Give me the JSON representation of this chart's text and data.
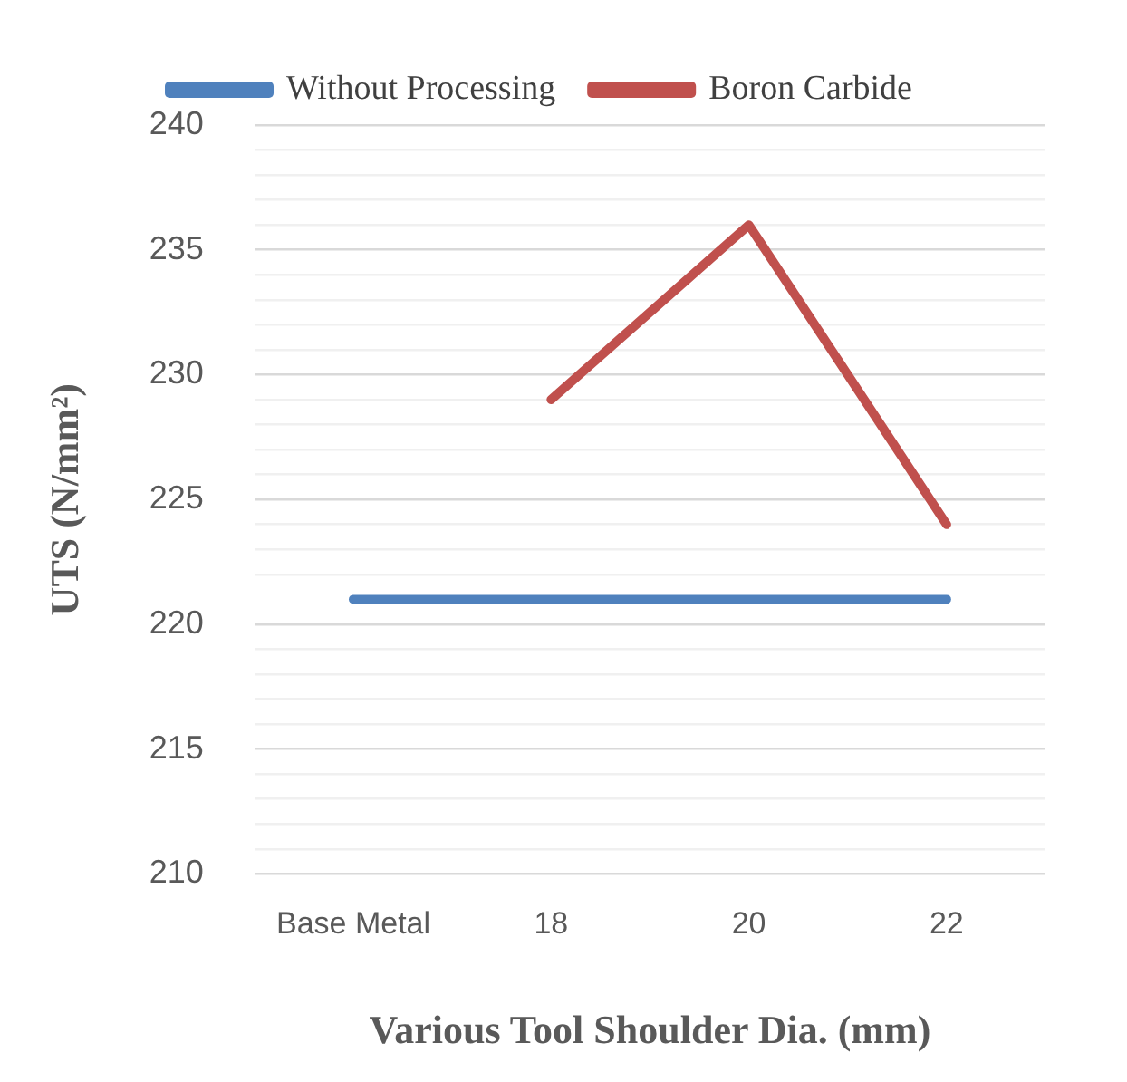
{
  "chart_data": {
    "type": "line",
    "xlabel": "Various Tool Shoulder Dia. (mm)",
    "ylabel": "UTS (N/mm²)",
    "categories": [
      "Base Metal",
      "18",
      "20",
      "22"
    ],
    "series": [
      {
        "name": "Without Processing",
        "color": "#4f81bd",
        "values": [
          221,
          221,
          221,
          221
        ]
      },
      {
        "name": "Boron Carbide",
        "color": "#c0504d",
        "values": [
          null,
          229,
          236,
          224
        ]
      }
    ],
    "ylim": [
      210,
      240
    ],
    "yticks": [
      210,
      {
        "value": 211,
        "label": null
      },
      {
        "value": 212,
        "label": null
      },
      {
        "value": 213,
        "label": null
      },
      {
        "value": 214,
        "label": null
      },
      215,
      {
        "value": 216,
        "label": null
      },
      {
        "value": 217,
        "label": null
      },
      {
        "value": 218,
        "label": null
      },
      {
        "value": 219,
        "label": null
      },
      220,
      {
        "value": 222,
        "label": null
      },
      {
        "value": 223,
        "label": null
      },
      {
        "value": 224,
        "label": null
      },
      225,
      {
        "value": 226,
        "label": null
      },
      {
        "value": 227,
        "label": null
      },
      {
        "value": 228,
        "label": null
      },
      {
        "value": 229,
        "label": null
      },
      230,
      {
        "value": 231,
        "label": null
      },
      {
        "value": 232,
        "label": null
      },
      {
        "value": 233,
        "label": null
      },
      {
        "value": 234,
        "label": null
      },
      235,
      {
        "value": 236,
        "label": null
      },
      {
        "value": 237,
        "label": null
      },
      {
        "value": 238,
        "label": null
      },
      {
        "value": 239,
        "label": null
      },
      240
    ],
    "grid": "y",
    "legend": "top",
    "marker": "none",
    "line_style": "solid"
  }
}
